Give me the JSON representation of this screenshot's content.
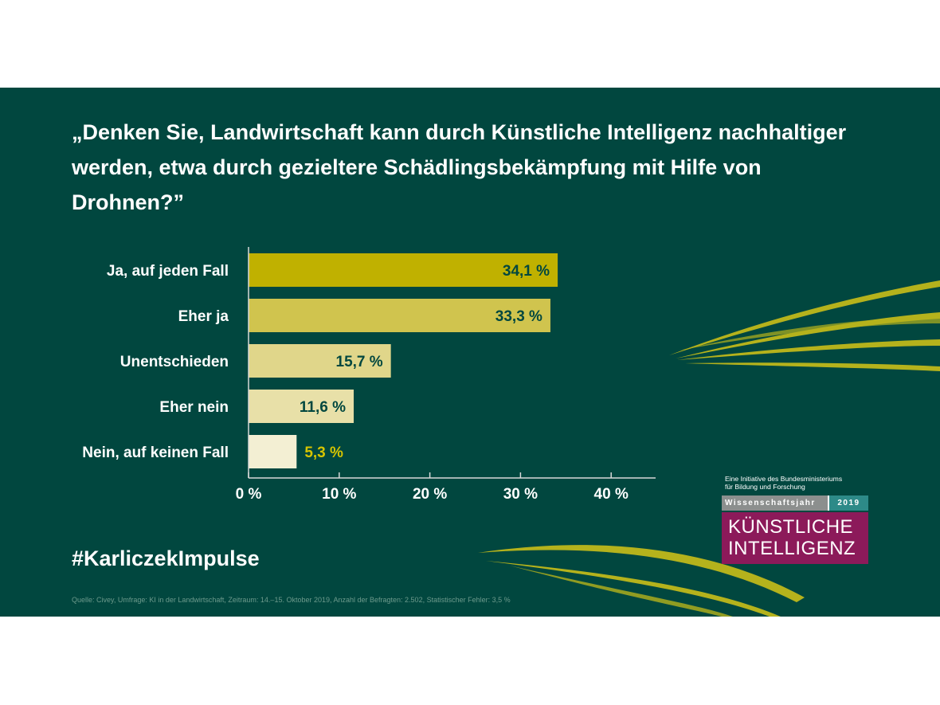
{
  "slide": {
    "question": "„Denken Sie, Landwirtschaft kann durch Künstliche Intelligenz nachhaltiger werden, etwa durch gezieltere Schädlingsbekämpfung mit Hilfe von Drohnen?”",
    "hashtag": "#KarliczekImpulse",
    "source": "Quelle: Civey, Umfrage: KI in der Landwirtschaft, Zeitraum: 14.–15. Oktober 2019, Anzahl der Befragten:  2.502, Statistischer Fehler: 3,5 %"
  },
  "logo": {
    "initiative_line1": "Eine Initiative des Bundesministeriums",
    "initiative_line2": "für Bildung und Forschung",
    "year_label": "Wissenschaftsjahr",
    "year": "2019",
    "title_line1": "KÜNSTLICHE",
    "title_line2": "INTELLIGENZ"
  },
  "colors": {
    "background": "#01473f",
    "bar_colors": [
      "#c0b100",
      "#d0c44e",
      "#e0d68a",
      "#e8e0a8",
      "#f3efd3"
    ],
    "label_dark": "#01473f",
    "label_accent": "#d6c400",
    "logo_magenta": "#8c1a5a"
  },
  "chart_data": {
    "type": "bar",
    "orientation": "horizontal",
    "categories": [
      "Ja, auf jeden Fall",
      "Eher ja",
      "Unentschieden",
      "Eher nein",
      "Nein, auf keinen Fall"
    ],
    "values": [
      34.1,
      33.3,
      15.7,
      11.6,
      5.3
    ],
    "value_labels": [
      "34,1 %",
      "33,3 %",
      "15,7 %",
      "11,6 %",
      "5,3 %"
    ],
    "xlim": [
      0,
      45
    ],
    "xticks": [
      0,
      10,
      20,
      30,
      40
    ],
    "xtick_labels": [
      "0 %",
      "10 %",
      "20 %",
      "30 %",
      "40 %"
    ],
    "unit": "%",
    "grid": false,
    "legend": "none"
  }
}
